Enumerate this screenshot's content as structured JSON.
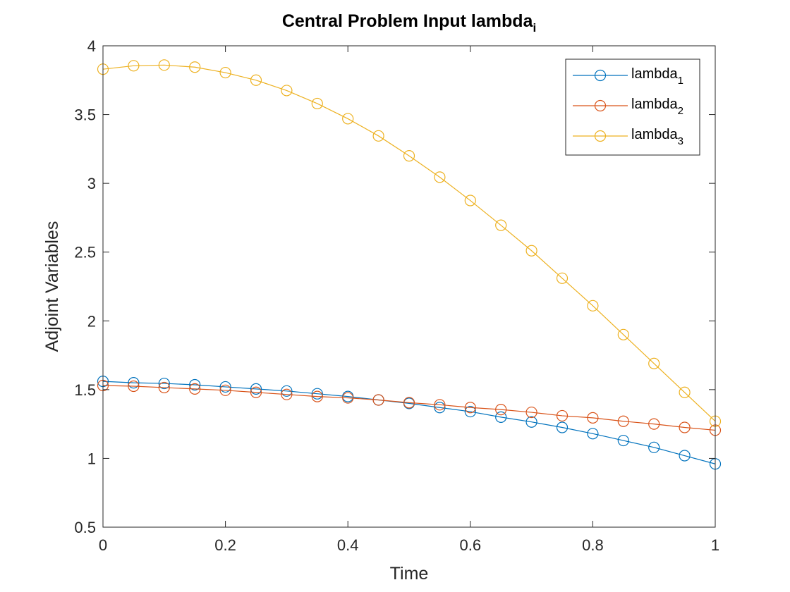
{
  "chart_data": {
    "type": "line",
    "title": "Central Problem Input lambda",
    "title_subscript": "i",
    "xlabel": "Time",
    "ylabel": "Adjoint Variables",
    "xlim": [
      0,
      1
    ],
    "ylim": [
      0.5,
      4
    ],
    "xticks": [
      0,
      0.2,
      0.4,
      0.6,
      0.8,
      1
    ],
    "xtick_labels": [
      "0",
      "0.2",
      "0.4",
      "0.6",
      "0.8",
      "1"
    ],
    "yticks": [
      0.5,
      1,
      1.5,
      2,
      2.5,
      3,
      3.5,
      4
    ],
    "ytick_labels": [
      "0.5",
      "1",
      "1.5",
      "2",
      "2.5",
      "3",
      "3.5",
      "4"
    ],
    "grid": false,
    "box": true,
    "legend_position": "top-right",
    "marker": "circle",
    "x": [
      0,
      0.05,
      0.1,
      0.15,
      0.2,
      0.25,
      0.3,
      0.35,
      0.4,
      0.45,
      0.5,
      0.55,
      0.6,
      0.65,
      0.7,
      0.75,
      0.8,
      0.85,
      0.9,
      0.95,
      1
    ],
    "series": [
      {
        "name": "lambda",
        "subscript": "1",
        "color": "#0072BD",
        "values": [
          1.56,
          1.55,
          1.545,
          1.535,
          1.52,
          1.505,
          1.49,
          1.47,
          1.45,
          1.425,
          1.4,
          1.37,
          1.34,
          1.3,
          1.265,
          1.225,
          1.18,
          1.13,
          1.08,
          1.02,
          0.96
        ]
      },
      {
        "name": "lambda",
        "subscript": "2",
        "color": "#D95319",
        "values": [
          1.53,
          1.525,
          1.515,
          1.505,
          1.495,
          1.48,
          1.465,
          1.45,
          1.44,
          1.425,
          1.405,
          1.39,
          1.37,
          1.355,
          1.335,
          1.31,
          1.295,
          1.27,
          1.25,
          1.225,
          1.205
        ]
      },
      {
        "name": "lambda",
        "subscript": "3",
        "color": "#EDB120",
        "values": [
          3.83,
          3.855,
          3.86,
          3.845,
          3.805,
          3.75,
          3.675,
          3.58,
          3.47,
          3.345,
          3.2,
          3.045,
          2.875,
          2.695,
          2.51,
          2.31,
          2.11,
          1.9,
          1.69,
          1.48,
          1.27
        ]
      }
    ]
  }
}
